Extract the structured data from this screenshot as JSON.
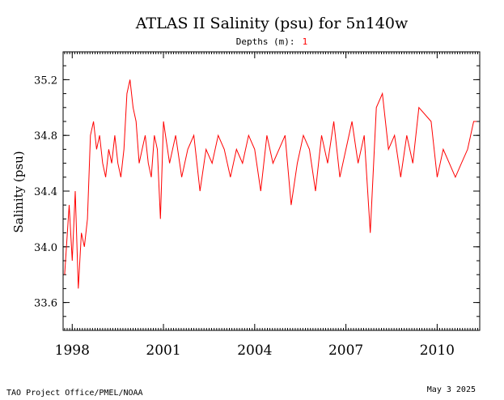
{
  "chart_data": {
    "type": "line",
    "title": "ATLAS II Salinity (psu) for 5n140w",
    "subtitle": {
      "label": "Depths (m):",
      "value": "1"
    },
    "ylabel": "Salinity (psu)",
    "xlabel": "",
    "ylim": [
      33.4,
      35.4
    ],
    "xlim": [
      1997.7,
      2011.4
    ],
    "y_ticks": [
      {
        "value": 33.6,
        "label": "33.6"
      },
      {
        "value": 34.0,
        "label": "34.0"
      },
      {
        "value": 34.4,
        "label": "34.4"
      },
      {
        "value": 34.8,
        "label": "34.8"
      },
      {
        "value": 35.2,
        "label": "35.2"
      }
    ],
    "x_ticks": [
      {
        "value": 1998,
        "label": "1998"
      },
      {
        "value": 2001,
        "label": "2001"
      },
      {
        "value": 2004,
        "label": "2004"
      },
      {
        "value": 2007,
        "label": "2007"
      },
      {
        "value": 2010,
        "label": "2010"
      }
    ],
    "grid": false,
    "series": [
      {
        "color": "#ff0000",
        "x": [
          1997.75,
          1997.9,
          1998.0,
          1998.1,
          1998.2,
          1998.3,
          1998.4,
          1998.5,
          1998.6,
          1998.7,
          1998.8,
          1998.9,
          1999.0,
          1999.1,
          1999.2,
          1999.3,
          1999.4,
          1999.5,
          1999.6,
          1999.7,
          1999.8,
          1999.9,
          2000.0,
          2000.1,
          2000.2,
          2000.3,
          2000.4,
          2000.5,
          2000.6,
          2000.7,
          2000.8,
          2000.9,
          2001.0,
          2001.2,
          2001.4,
          2001.6,
          2001.8,
          2002.0,
          2002.2,
          2002.4,
          2002.6,
          2002.8,
          2003.0,
          2003.2,
          2003.4,
          2003.6,
          2003.8,
          2004.0,
          2004.2,
          2004.4,
          2004.6,
          2004.8,
          2005.0,
          2005.2,
          2005.4,
          2005.6,
          2005.8,
          2006.0,
          2006.2,
          2006.4,
          2006.6,
          2006.8,
          2007.0,
          2007.2,
          2007.4,
          2007.6,
          2007.8,
          2008.0,
          2008.2,
          2008.4,
          2008.6,
          2008.8,
          2009.0,
          2009.2,
          2009.4,
          2009.8,
          2010.0,
          2010.2,
          2010.4,
          2010.6,
          2010.8,
          2011.0,
          2011.2,
          2011.3
        ],
        "y": [
          33.8,
          34.3,
          33.9,
          34.4,
          33.7,
          34.1,
          34.0,
          34.2,
          34.8,
          34.9,
          34.7,
          34.8,
          34.6,
          34.5,
          34.7,
          34.6,
          34.8,
          34.6,
          34.5,
          34.7,
          35.1,
          35.2,
          35.0,
          34.9,
          34.6,
          34.7,
          34.8,
          34.6,
          34.5,
          34.8,
          34.7,
          34.2,
          34.9,
          34.6,
          34.8,
          34.5,
          34.7,
          34.8,
          34.4,
          34.7,
          34.6,
          34.8,
          34.7,
          34.5,
          34.7,
          34.6,
          34.8,
          34.7,
          34.4,
          34.8,
          34.6,
          34.7,
          34.8,
          34.3,
          34.6,
          34.8,
          34.7,
          34.4,
          34.8,
          34.6,
          34.9,
          34.5,
          34.7,
          34.9,
          34.6,
          34.8,
          34.1,
          35.0,
          35.1,
          34.7,
          34.8,
          34.5,
          34.8,
          34.6,
          35.0,
          34.9,
          34.5,
          34.7,
          34.6,
          34.5,
          34.6,
          34.7,
          34.9,
          34.9
        ]
      }
    ]
  },
  "footer": {
    "left": "TAO Project Office/PMEL/NOAA",
    "right": "May  3 2025"
  }
}
